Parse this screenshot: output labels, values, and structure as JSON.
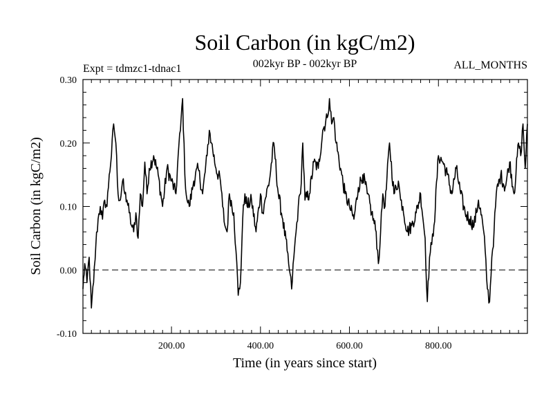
{
  "chart_data": {
    "type": "line",
    "title": "Soil Carbon (in kgC/m2)",
    "subtitle": "002kyr BP - 002kyr BP",
    "left_label": "Expt = tdmzc1-tdnac1",
    "right_label": "ALL_MONTHS",
    "xlabel": "Time (in years since start)",
    "ylabel": "Soil Carbon (in kgC/m2)",
    "xlim": [
      1,
      1000
    ],
    "ylim": [
      -0.1,
      0.3
    ],
    "x_ticks": [
      200,
      400,
      600,
      800
    ],
    "x_tick_labels": [
      "200.00",
      "400.00",
      "600.00",
      "800.00"
    ],
    "y_ticks": [
      -0.1,
      0.0,
      0.1,
      0.2,
      0.3
    ],
    "y_tick_labels": [
      "-0.10",
      "0.00",
      "0.10",
      "0.20",
      "0.30"
    ],
    "zero_line": 0.0,
    "series": [
      {
        "name": "Soil Carbon",
        "x": [
          1,
          5,
          10,
          15,
          20,
          25,
          30,
          35,
          40,
          45,
          50,
          55,
          60,
          65,
          70,
          75,
          80,
          85,
          90,
          95,
          100,
          105,
          110,
          115,
          120,
          125,
          130,
          135,
          140,
          145,
          150,
          160,
          170,
          180,
          190,
          200,
          210,
          215,
          220,
          225,
          230,
          235,
          240,
          250,
          260,
          270,
          280,
          285,
          290,
          300,
          310,
          315,
          320,
          325,
          330,
          340,
          345,
          350,
          355,
          360,
          365,
          370,
          380,
          390,
          400,
          405,
          410,
          420,
          430,
          440,
          450,
          460,
          465,
          470,
          475,
          480,
          485,
          490,
          495,
          500,
          510,
          520,
          530,
          540,
          550,
          555,
          560,
          565,
          570,
          580,
          590,
          600,
          610,
          620,
          630,
          640,
          650,
          660,
          665,
          670,
          675,
          680,
          690,
          700,
          710,
          715,
          720,
          730,
          740,
          750,
          760,
          770,
          775,
          780,
          785,
          790,
          800,
          810,
          820,
          830,
          840,
          850,
          860,
          870,
          880,
          890,
          900,
          905,
          910,
          915,
          920,
          925,
          930,
          940,
          950,
          960,
          970,
          980,
          985,
          990,
          995,
          1000
        ],
        "values": [
          -0.03,
          0.01,
          -0.02,
          0.02,
          -0.06,
          -0.02,
          0.04,
          0.08,
          0.1,
          0.08,
          0.11,
          0.1,
          0.15,
          0.18,
          0.23,
          0.2,
          0.12,
          0.11,
          0.14,
          0.12,
          0.11,
          0.09,
          0.07,
          0.06,
          0.09,
          0.05,
          0.12,
          0.1,
          0.17,
          0.12,
          0.16,
          0.18,
          0.15,
          0.1,
          0.16,
          0.14,
          0.12,
          0.18,
          0.22,
          0.27,
          0.15,
          0.11,
          0.1,
          0.14,
          0.16,
          0.12,
          0.18,
          0.22,
          0.2,
          0.16,
          0.14,
          0.1,
          0.07,
          0.06,
          0.12,
          0.09,
          0.03,
          -0.04,
          -0.02,
          0.08,
          0.12,
          0.1,
          0.11,
          0.06,
          0.12,
          0.09,
          0.11,
          0.14,
          0.2,
          0.12,
          0.08,
          0.03,
          0.0,
          -0.03,
          0.02,
          0.06,
          0.1,
          0.12,
          0.2,
          0.11,
          0.12,
          0.17,
          0.16,
          0.22,
          0.24,
          0.27,
          0.23,
          0.24,
          0.2,
          0.16,
          0.12,
          0.1,
          0.08,
          0.13,
          0.15,
          0.12,
          0.09,
          0.06,
          0.01,
          0.06,
          0.12,
          0.1,
          0.2,
          0.12,
          0.14,
          0.11,
          0.1,
          0.06,
          0.07,
          0.09,
          0.12,
          0.05,
          -0.05,
          0.02,
          0.04,
          0.07,
          0.18,
          0.17,
          0.15,
          0.12,
          0.16,
          0.12,
          0.09,
          0.08,
          0.07,
          0.11,
          0.07,
          0.03,
          -0.03,
          -0.05,
          0.02,
          0.06,
          0.12,
          0.15,
          0.13,
          0.17,
          0.12,
          0.2,
          0.18,
          0.23,
          0.16,
          0.23
        ]
      }
    ]
  }
}
